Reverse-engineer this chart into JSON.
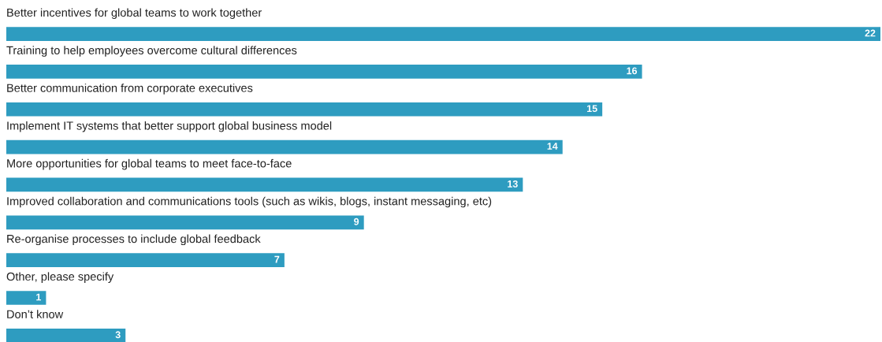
{
  "chart_data": {
    "type": "bar",
    "orientation": "horizontal",
    "categories": [
      "Better incentives for global teams to work together",
      "Training to help employees overcome cultural differences",
      "Better communication from corporate executives",
      "Implement IT systems that better support global business model",
      "More opportunities for global teams to meet face-to-face",
      "Improved collaboration and communications tools (such as wikis, blogs, instant messaging, etc)",
      "Re-organise processes to include global feedback",
      "Other, please specify",
      "Don’t know"
    ],
    "values": [
      22,
      16,
      15,
      14,
      13,
      9,
      7,
      1,
      3
    ],
    "color": "#2e9cc0",
    "xlim": [
      0,
      22
    ],
    "data_labels": true
  }
}
